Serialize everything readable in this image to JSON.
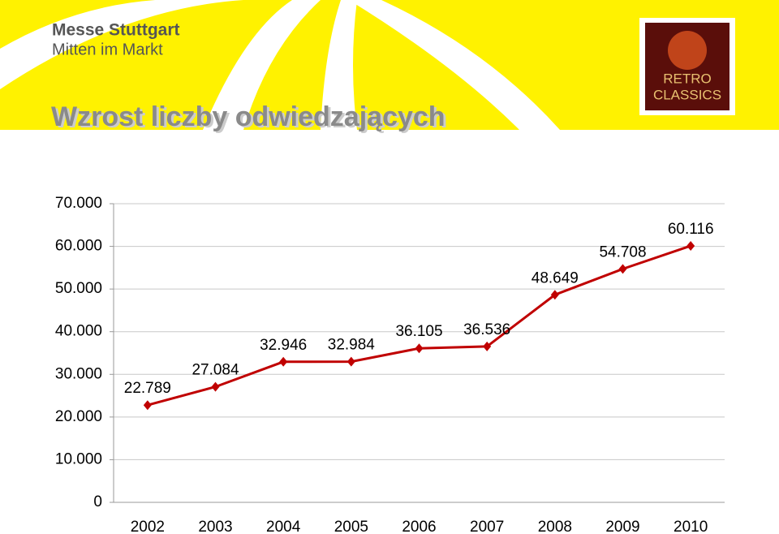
{
  "header": {
    "logo_line1": "Messe Stuttgart",
    "logo_line2": "Mitten im Markt",
    "badge_line1": "RETRO",
    "badge_line2": "CLASSICS"
  },
  "chart_data": {
    "type": "line",
    "title": "Wzrost liczby odwiedzających",
    "categories": [
      "2002",
      "2003",
      "2004",
      "2005",
      "2006",
      "2007",
      "2008",
      "2009",
      "2010"
    ],
    "values": [
      22789,
      27084,
      32946,
      32984,
      36105,
      36536,
      48649,
      54708,
      60116
    ],
    "value_labels": [
      "22.789",
      "27.084",
      "32.946",
      "32.984",
      "36.105",
      "36.536",
      "48.649",
      "54.708",
      "60.116"
    ],
    "color": "#c00000",
    "ylim": [
      0,
      70000
    ],
    "yticks": [
      0,
      {
        "value": 10000,
        "label": "10.000"
      },
      {
        "value": 20000,
        "label": "20.000"
      },
      {
        "value": 30000,
        "label": "30.000"
      },
      {
        "value": 40000,
        "label": "40.000"
      },
      {
        "value": 50000,
        "label": "50.000"
      },
      {
        "value": 60000,
        "label": "60.000"
      },
      {
        "value": 70000,
        "label": "70.000"
      }
    ],
    "grid": true
  }
}
